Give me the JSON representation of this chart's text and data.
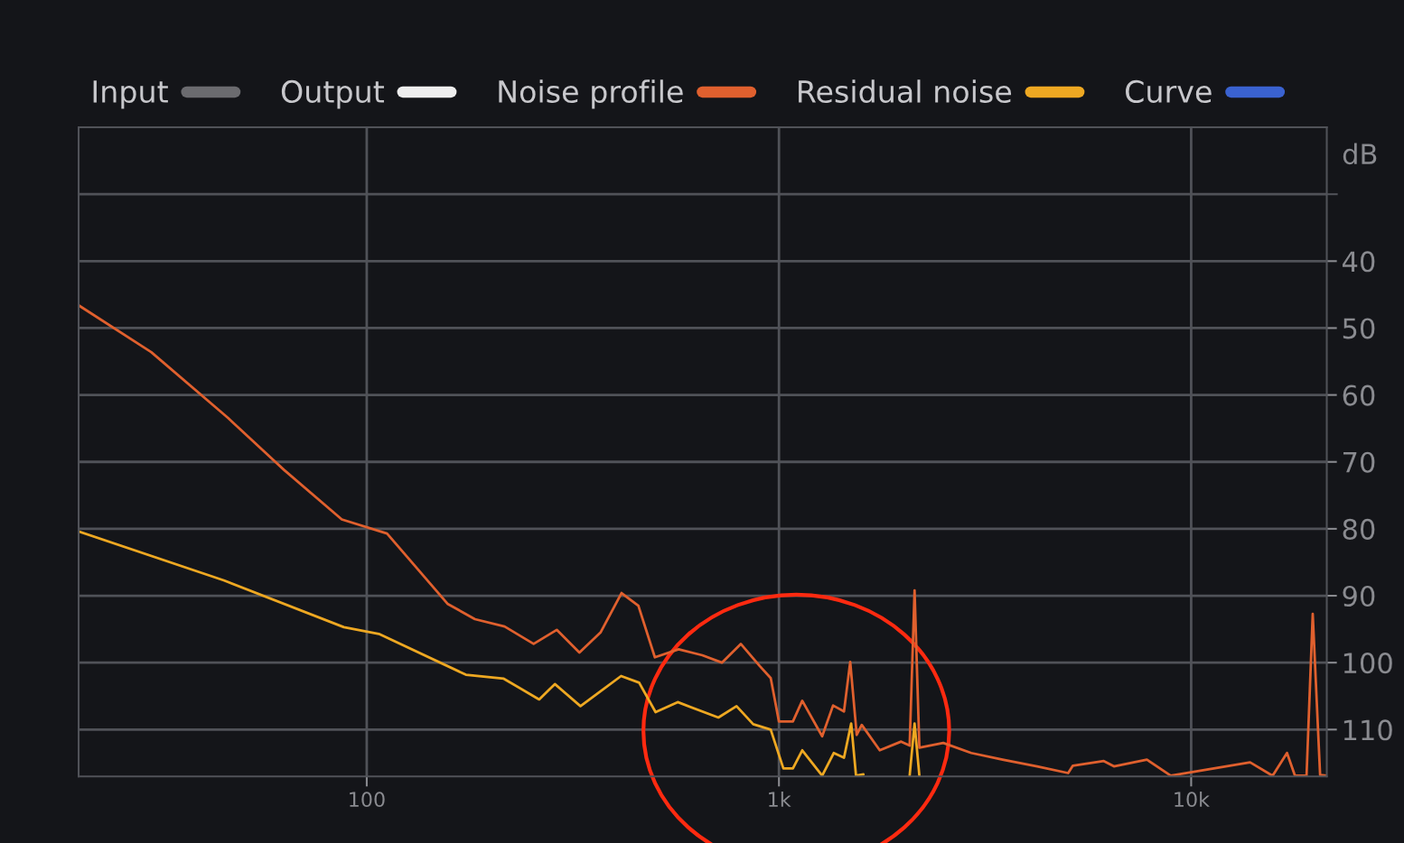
{
  "chart_data": {
    "type": "line",
    "ylabel": "dB",
    "xlim": [
      20,
      21330
    ],
    "xticks": [
      {
        "value": 100,
        "label": "100"
      },
      {
        "value": 1000,
        "label": "1k"
      },
      {
        "value": 10000,
        "label": "10k"
      }
    ],
    "log": "x",
    "ref_lines": [
      {
        "axis": "y",
        "value": 30,
        "color": "#505258"
      }
    ],
    "ylim": [
      117,
      20
    ],
    "yticks": [
      40,
      50,
      60,
      70,
      80,
      90,
      100,
      110
    ],
    "grid": true,
    "legend": "top",
    "line_style": "solid",
    "marker": "none",
    "series": [
      {
        "name": "Input",
        "color": "#6b6b6f"
      },
      {
        "name": "Output",
        "color": "#eeeeee"
      },
      {
        "name": "Noise profile",
        "color": "#e0602e",
        "x": [
          20,
          30,
          46,
          63,
          87,
          112,
          157,
          183,
          216,
          254,
          289,
          328,
          369,
          415,
          456,
          500,
          571,
          652,
          727,
          808,
          898,
          955,
          1000,
          1081,
          1139,
          1273,
          1353,
          1438,
          1489,
          1544,
          1588,
          1756,
          1979,
          2075,
          2133,
          2191,
          2504,
          2927,
          3487,
          4229,
          5030,
          5165,
          6140,
          6495,
          7810,
          8920,
          13900,
          15760,
          17080,
          17860,
          19050,
          19720,
          20550,
          21330
        ],
        "values": [
          46.6,
          53.6,
          63.4,
          71.2,
          78.6,
          80.7,
          91.2,
          93.5,
          94.6,
          97.2,
          95.1,
          98.5,
          95.5,
          89.6,
          91.5,
          99.2,
          98.0,
          98.9,
          100,
          97.2,
          100.5,
          102.3,
          108.8,
          108.8,
          105.7,
          111,
          106.4,
          107.3,
          99.9,
          110.8,
          109.3,
          113.1,
          111.8,
          112.4,
          89.2,
          112.7,
          112,
          113.5,
          114.5,
          115.5,
          116.5,
          115.4,
          114.7,
          115.5,
          114.5,
          116.9,
          114.9,
          116.9,
          113.5,
          116.9,
          116.9,
          92.7,
          116.8,
          116.9
        ]
      },
      {
        "name": "Residual noise",
        "color": "#eea822",
        "x": [
          20,
          45,
          88,
          107,
          174,
          215,
          262,
          286,
          330,
          414,
          458,
          502,
          568,
          713,
          789,
          866,
          955,
          1025,
          1081,
          1139,
          1273,
          1358,
          1438,
          1497,
          1538,
          1603,
          1800,
          2075,
          2133,
          2191
        ],
        "values": [
          80.4,
          87.7,
          94.7,
          95.7,
          101.8,
          102.4,
          105.5,
          103.2,
          106.5,
          102,
          103,
          107.4,
          105.9,
          108.2,
          106.5,
          109.2,
          110,
          115.8,
          115.8,
          113.1,
          116.9,
          113.5,
          114.2,
          109.1,
          116.9,
          116.7,
          null,
          116.9,
          109.1,
          116.9
        ]
      },
      {
        "name": "Curve",
        "color": "#3a62d0"
      }
    ]
  }
}
